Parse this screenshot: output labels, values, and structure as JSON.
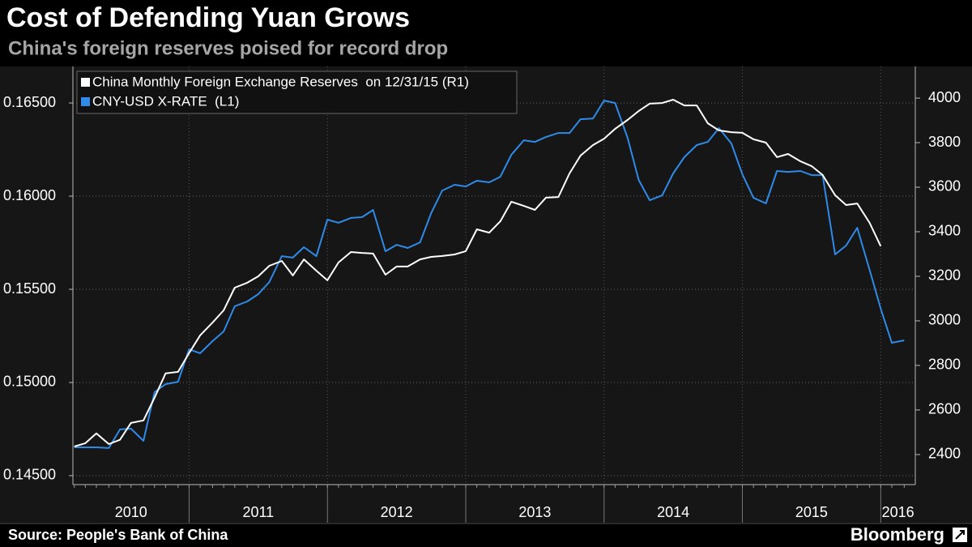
{
  "chart_data": {
    "type": "line",
    "title": "Cost of Defending Yuan Grows",
    "subtitle": "China's foreign reserves poised for record drop",
    "source": "Source: People's Bank of China",
    "brand": "Bloomberg",
    "x": [
      2010.17,
      2010.25,
      2010.33,
      2010.42,
      2010.5,
      2010.58,
      2010.67,
      2010.75,
      2010.83,
      2010.92,
      2011,
      2011.08,
      2011.17,
      2011.25,
      2011.33,
      2011.42,
      2011.5,
      2011.58,
      2011.67,
      2011.75,
      2011.83,
      2011.92,
      2012,
      2012.08,
      2012.17,
      2012.25,
      2012.33,
      2012.42,
      2012.5,
      2012.58,
      2012.67,
      2012.75,
      2012.83,
      2012.92,
      2013,
      2013.08,
      2013.17,
      2013.25,
      2013.33,
      2013.42,
      2013.5,
      2013.58,
      2013.67,
      2013.75,
      2013.83,
      2013.92,
      2014,
      2014.08,
      2014.17,
      2014.25,
      2014.33,
      2014.42,
      2014.5,
      2014.58,
      2014.67,
      2014.75,
      2014.83,
      2014.92,
      2015,
      2015.08,
      2015.17,
      2015.25,
      2015.33,
      2015.42,
      2015.5,
      2015.58,
      2015.67,
      2015.75,
      2015.83,
      2015.92,
      2016,
      2016.08,
      2016.17
    ],
    "xlim": [
      2010.16,
      2016.25
    ],
    "xticks": [
      {
        "value": 2010,
        "label": "2010"
      },
      {
        "value": 2011,
        "label": "2011"
      },
      {
        "value": 2012,
        "label": "2012"
      },
      {
        "value": 2013,
        "label": "2013"
      },
      {
        "value": 2014,
        "label": "2014"
      },
      {
        "value": 2015,
        "label": "2015"
      },
      {
        "value": 2016,
        "label": "2016"
      }
    ],
    "ylim": [
      0.14452,
      0.16696
    ],
    "yticks": [
      {
        "value": 0.145,
        "label": "0.14500"
      },
      {
        "value": 0.15,
        "label": "0.15000"
      },
      {
        "value": 0.155,
        "label": "0.15500"
      },
      {
        "value": 0.16,
        "label": "0.16000"
      },
      {
        "value": 0.165,
        "label": "0.16500"
      }
    ],
    "y2lim": [
      2265,
      4142
    ],
    "y2ticks": [
      2400,
      2600,
      2800,
      3000,
      3200,
      3400,
      3600,
      3800,
      4000
    ],
    "grid": true,
    "legend": "top-left",
    "series": [
      {
        "name": "China Monthly Foreign Exchange Reserves  on 12/31/15 (R1)",
        "color": "#ffffff",
        "axis": "y2",
        "values": [
          2436,
          2451,
          2495,
          2447,
          2466,
          2542,
          2553,
          2655,
          2764,
          2771,
          2855,
          2935,
          2993,
          3047,
          3149,
          3171,
          3200,
          3247,
          3269,
          3204,
          3276,
          3225,
          3182,
          3262,
          3309,
          3305,
          3302,
          3207,
          3244,
          3244,
          3276,
          3287,
          3291,
          3298,
          3313,
          3411,
          3396,
          3447,
          3535,
          3516,
          3498,
          3553,
          3556,
          3662,
          3742,
          3789,
          3818,
          3862,
          3902,
          3942,
          3975,
          3978,
          3993,
          3967,
          3967,
          3887,
          3855,
          3847,
          3844,
          3815,
          3800,
          3735,
          3749,
          3716,
          3695,
          3655,
          3564,
          3520,
          3527,
          3440,
          3335,
          null,
          null
        ]
      },
      {
        "name": "CNY-USD X-RATE  (L1)",
        "color": "#2f8ae8",
        "values": [
          0.14652,
          0.14652,
          0.14652,
          0.14648,
          0.14748,
          0.14752,
          0.14687,
          0.14948,
          0.14991,
          0.15004,
          0.15178,
          0.15157,
          0.15222,
          0.15274,
          0.15409,
          0.15435,
          0.15474,
          0.15539,
          0.15678,
          0.1567,
          0.15726,
          0.15678,
          0.15874,
          0.15857,
          0.15883,
          0.15887,
          0.15926,
          0.15704,
          0.15739,
          0.15722,
          0.15752,
          0.15909,
          0.1603,
          0.16061,
          0.16052,
          0.16083,
          0.16074,
          0.16104,
          0.16222,
          0.163,
          0.16291,
          0.16317,
          0.16339,
          0.16339,
          0.16413,
          0.16417,
          0.16513,
          0.165,
          0.16313,
          0.16087,
          0.15978,
          0.16004,
          0.16122,
          0.16209,
          0.16274,
          0.16291,
          0.16365,
          0.16283,
          0.16117,
          0.15991,
          0.15961,
          0.16135,
          0.1613,
          0.16135,
          0.16113,
          0.16113,
          0.15687,
          0.15735,
          0.1583,
          0.15604,
          0.15396,
          0.15213,
          0.15226
        ]
      }
    ]
  }
}
